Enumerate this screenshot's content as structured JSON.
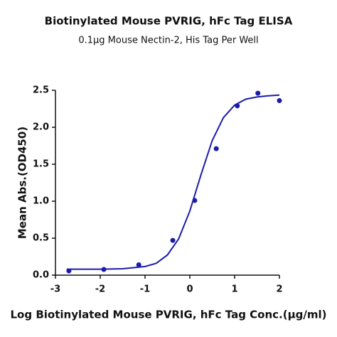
{
  "chart_data": {
    "type": "scatter",
    "title": "Biotinylated Mouse PVRIG, hFc Tag ELISA",
    "subtitle": "0.1µg Mouse Nectin-2, His Tag Per Well",
    "xlabel": "Log Biotinylated Mouse PVRIG, hFc Tag Conc.(µg/ml)",
    "ylabel": "Mean Abs.(OD450)",
    "color": "#1c1ca8",
    "x": [
      -2.7,
      -1.92,
      -1.14,
      -0.38,
      0.11,
      0.59,
      1.06,
      1.52,
      2.0
    ],
    "values": [
      0.058,
      0.077,
      0.14,
      0.47,
      1.01,
      1.71,
      2.29,
      2.46,
      2.36
    ],
    "fit_x": [
      -2.75,
      -2,
      -1.5,
      -1,
      -0.75,
      -0.5,
      -0.25,
      0,
      0.25,
      0.5,
      0.75,
      1,
      1.25,
      1.5,
      1.75,
      2
    ],
    "fit_values": [
      0.08,
      0.081,
      0.087,
      0.117,
      0.16,
      0.273,
      0.49,
      0.867,
      1.36,
      1.82,
      2.13,
      2.3,
      2.38,
      2.41,
      2.425,
      2.435
    ],
    "xlim": [
      -3,
      2
    ],
    "ylim": [
      0,
      2.5
    ],
    "xticks": [
      -3,
      -2,
      -1,
      0,
      1,
      2
    ],
    "yticks": [
      {
        "value": 0,
        "label": "0.0"
      },
      {
        "value": 0.5,
        "label": "0.5"
      },
      {
        "value": 1,
        "label": "1.0"
      },
      {
        "value": 1.5,
        "label": "1.5"
      },
      {
        "value": 2,
        "label": "2.0"
      },
      {
        "value": 2.5,
        "label": "2.5"
      }
    ]
  }
}
